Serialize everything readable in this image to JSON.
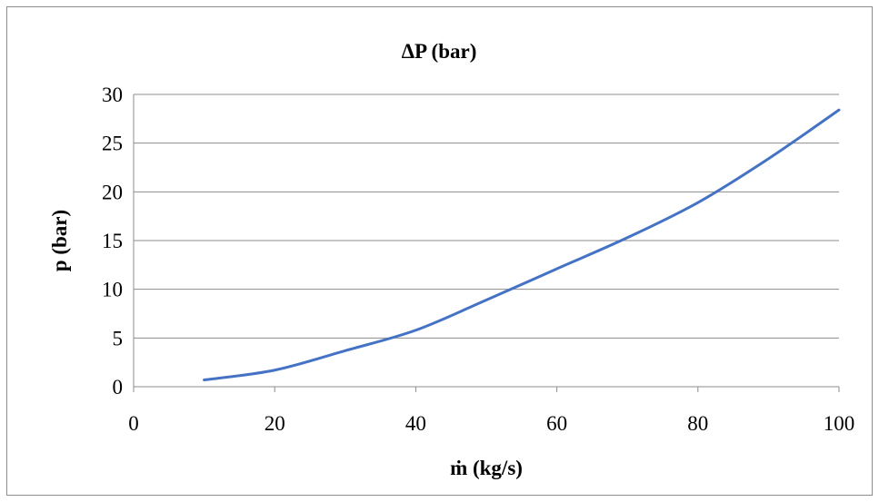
{
  "chart_data": {
    "type": "line",
    "title": "ΔP (bar)",
    "xlabel": "ṁ (kg/s)",
    "ylabel": "p (bar)",
    "xlim": [
      0,
      100
    ],
    "ylim": [
      0,
      30
    ],
    "xticks": [
      "0",
      "20",
      "40",
      "60",
      "80",
      "100"
    ],
    "yticks": [
      "0",
      "5",
      "10",
      "15",
      "20",
      "25",
      "30"
    ],
    "grid": true,
    "legend": "none",
    "series": [
      {
        "color": "#4472c4",
        "x": [
          10,
          20,
          30,
          40,
          50,
          60,
          70,
          80,
          90,
          100
        ],
        "y": [
          0.7,
          1.7,
          3.7,
          5.8,
          8.9,
          12.1,
          15.3,
          18.9,
          23.4,
          28.4
        ]
      }
    ]
  }
}
